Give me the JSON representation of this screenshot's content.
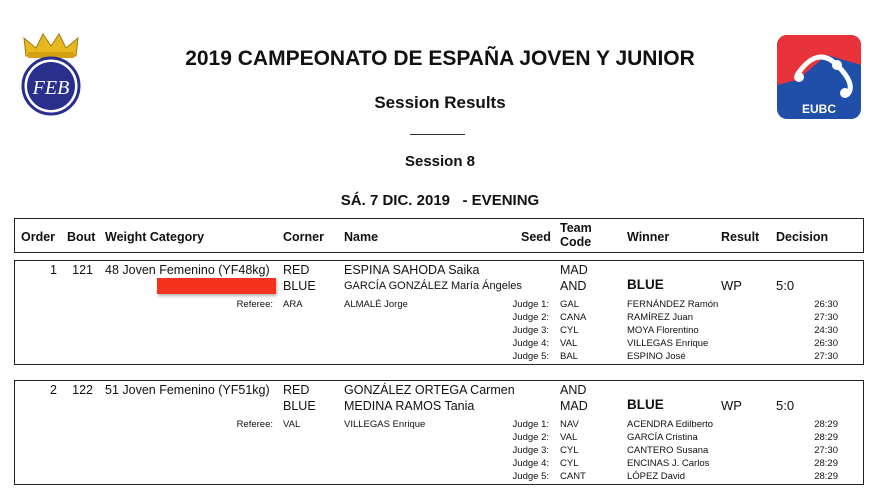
{
  "header": {
    "title": "2019 CAMPEONATO DE ESPAÑA JOVEN Y JUNIOR",
    "subtitle": "Session Results",
    "session": "Session 8",
    "date": "SÁ. 7 DIC. 2019   - EVENING",
    "left_logo_text": "FEB",
    "right_logo_text": "EUBC",
    "colors": {
      "redaction": "#f4321e",
      "eubc_red": "#e8333b",
      "eubc_blue": "#1f4fa8",
      "feb_blue": "#2a2e8c",
      "crown_gold": "#e8b820"
    }
  },
  "columns": [
    "Order",
    "Bout",
    "Weight Category",
    "Corner",
    "Name",
    "Seed",
    "Team Code",
    "Winner",
    "Result",
    "Decision"
  ],
  "bouts": [
    {
      "order": "1",
      "bout": "121",
      "category": "48 Joven Femenino (YF48kg)",
      "redacted": true,
      "red": {
        "corner": "RED",
        "name": "ESPINA SAHODA Saika",
        "team": "MAD"
      },
      "blue": {
        "corner": "BLUE",
        "name": "GARCÍA GONZÁLEZ María Ángeles",
        "team": "AND"
      },
      "winner": "BLUE",
      "result": "WP",
      "decision": "5:0",
      "referee": {
        "label": "Referee:",
        "country": "ARA",
        "name": "ALMALÉ Jorge"
      },
      "judges": [
        {
          "label": "Judge 1:",
          "country": "GAL",
          "name": "FERNÁNDEZ Ramón",
          "score": "26:30"
        },
        {
          "label": "Judge 2:",
          "country": "CANA",
          "name": "RAMÍREZ Juan",
          "score": "27:30"
        },
        {
          "label": "Judge 3:",
          "country": "CYL",
          "name": "MOYA Florentino",
          "score": "24:30"
        },
        {
          "label": "Judge 4:",
          "country": "VAL",
          "name": "VILLEGAS Enrique",
          "score": "26:30"
        },
        {
          "label": "Judge 5:",
          "country": "BAL",
          "name": "ESPINO José",
          "score": "27:30"
        }
      ]
    },
    {
      "order": "2",
      "bout": "122",
      "category": "51 Joven Femenino (YF51kg)",
      "redacted": false,
      "red": {
        "corner": "RED",
        "name": "GONZÁLEZ ORTEGA Carmen",
        "team": "AND"
      },
      "blue": {
        "corner": "BLUE",
        "name": "MEDINA RAMOS Tania",
        "team": "MAD"
      },
      "winner": "BLUE",
      "result": "WP",
      "decision": "5:0",
      "referee": {
        "label": "Referee:",
        "country": "VAL",
        "name": "VILLEGAS Enrique"
      },
      "judges": [
        {
          "label": "Judge 1:",
          "country": "NAV",
          "name": "ACENDRA Edilberto",
          "score": "28:29"
        },
        {
          "label": "Judge 2:",
          "country": "VAL",
          "name": "GARCÍA Cristina",
          "score": "28:29"
        },
        {
          "label": "Judge 3:",
          "country": "CYL",
          "name": "CANTERO Susana",
          "score": "27:30"
        },
        {
          "label": "Judge 4:",
          "country": "CYL",
          "name": "ENCINAS J. Carlos",
          "score": "28:29"
        },
        {
          "label": "Judge 5:",
          "country": "CANT",
          "name": "LÓPEZ David",
          "score": "28:29"
        }
      ]
    }
  ]
}
